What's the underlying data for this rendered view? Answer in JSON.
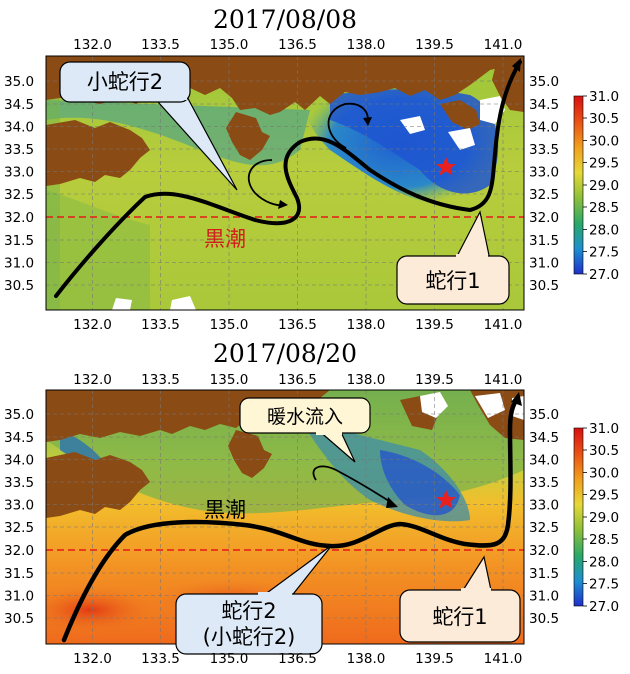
{
  "panels": [
    {
      "date": "2017/08/08",
      "kuroshio_label": "黒潮",
      "callouts": {
        "small_meander": "小蛇行2",
        "meander": "蛇行1"
      }
    },
    {
      "date": "2017/08/20",
      "kuroshio_label": "黒潮",
      "callouts": {
        "warm_inflow": "暖水流入",
        "meander2_line1": "蛇行2",
        "meander2_line2": "(小蛇行2)",
        "meander": "蛇行1"
      }
    }
  ],
  "axes": {
    "lon_ticks": [
      "132.0",
      "133.5",
      "135.0",
      "136.5",
      "138.0",
      "139.5",
      "141.0"
    ],
    "lat_ticks": [
      "35.0",
      "34.5",
      "34.0",
      "33.5",
      "33.0",
      "32.5",
      "32.0",
      "31.5",
      "31.0",
      "30.5"
    ],
    "reference_latitude": 32.0
  },
  "colorbar": {
    "ticks": [
      "31.0",
      "30.5",
      "30.0",
      "29.5",
      "29.0",
      "28.5",
      "28.0",
      "27.5",
      "27.0"
    ],
    "min": 27.0,
    "max": 31.0,
    "colors": [
      "#1f30c8",
      "#1e8fd0",
      "#2aa86a",
      "#8fc03a",
      "#e6d83a",
      "#f0a020",
      "#e85016",
      "#d81010"
    ]
  },
  "map_colors": {
    "land": "#8b4b14",
    "cloud": "#ffffff",
    "current": "#000000",
    "marker": "#e82020",
    "reference_line": "#e41a1a",
    "callout_fill_blue": "#dde9f6",
    "callout_fill_orange": "#fdebd9",
    "callout_fill_yellow": "#fff6d6"
  }
}
